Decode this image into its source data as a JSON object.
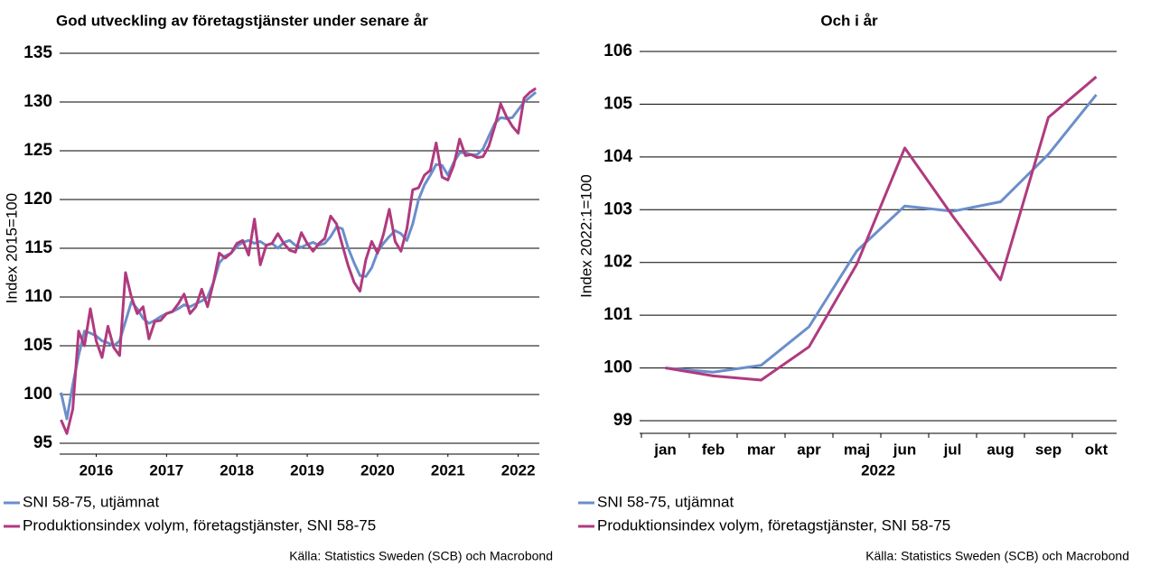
{
  "chart_data": [
    {
      "type": "line",
      "title": "God utveckling av företagstjänster under senare år",
      "ylabel": "Index 2015=100",
      "source": "Källa: Statistics Sweden (SCB) och Macrobond",
      "x": [
        2016,
        2016.083,
        2016.167,
        2016.25,
        2016.333,
        2016.417,
        2016.5,
        2016.583,
        2016.667,
        2016.75,
        2016.833,
        2016.917,
        2017,
        2017.083,
        2017.167,
        2017.25,
        2017.333,
        2017.417,
        2017.5,
        2017.583,
        2017.667,
        2017.75,
        2017.833,
        2017.917,
        2018,
        2018.083,
        2018.167,
        2018.25,
        2018.333,
        2018.417,
        2018.5,
        2018.583,
        2018.667,
        2018.75,
        2018.833,
        2018.917,
        2019,
        2019.083,
        2019.167,
        2019.25,
        2019.333,
        2019.417,
        2019.5,
        2019.583,
        2019.667,
        2019.75,
        2019.833,
        2019.917,
        2020,
        2020.083,
        2020.167,
        2020.25,
        2020.333,
        2020.417,
        2020.5,
        2020.583,
        2020.667,
        2020.75,
        2020.833,
        2020.917,
        2021,
        2021.083,
        2021.167,
        2021.25,
        2021.333,
        2021.417,
        2021.5,
        2021.583,
        2021.667,
        2021.75,
        2021.833,
        2021.917,
        2022,
        2022.083,
        2022.167,
        2022.25,
        2022.333,
        2022.417,
        2022.5,
        2022.583,
        2022.667,
        2022.75
      ],
      "xlim": [
        2015.98,
        2022.8
      ],
      "xticks": [
        {
          "value": 2016.5,
          "label": "2016"
        },
        {
          "value": 2017.5,
          "label": "2017"
        },
        {
          "value": 2018.5,
          "label": "2018"
        },
        {
          "value": 2019.5,
          "label": "2019"
        },
        {
          "value": 2020.5,
          "label": "2020"
        },
        {
          "value": 2021.5,
          "label": "2021"
        },
        {
          "value": 2022.5,
          "label": "2022"
        }
      ],
      "ylim": [
        95,
        135
      ],
      "yticks": [
        95,
        100,
        105,
        110,
        115,
        120,
        125,
        130,
        135
      ],
      "grid": true,
      "series": [
        {
          "name": "SNI 58-75, utjämnat",
          "color": "#6b8ecb",
          "values": [
            100.2,
            97.5,
            101,
            104,
            106.5,
            106.3,
            106,
            105.5,
            105.3,
            105,
            105.5,
            107.5,
            109.5,
            108.8,
            107.8,
            107.3,
            107.6,
            108,
            108.3,
            108.5,
            108.8,
            109.2,
            109,
            109.3,
            109.6,
            110,
            111.5,
            113.5,
            114.2,
            114.5,
            115.2,
            115.6,
            115.8,
            115.5,
            115.7,
            115.3,
            115.5,
            115,
            115.6,
            115.8,
            115.3,
            115.1,
            115.4,
            115.6,
            115.3,
            115.5,
            116.2,
            117.2,
            117,
            115,
            113.5,
            112.2,
            112.1,
            113,
            114.6,
            115.5,
            116.2,
            116.8,
            116.5,
            115.8,
            117.5,
            120,
            121.5,
            122.5,
            123.6,
            123.5,
            122.5,
            123.8,
            124.8,
            124.8,
            124.6,
            124.6,
            125.2,
            126.5,
            127.8,
            128.4,
            128.3,
            128.4,
            129.2,
            130,
            130.5,
            131
          ]
        },
        {
          "name": "Produktionsindex volym, företagstjänster, SNI 58-75",
          "color": "#b03a7e",
          "values": [
            97.4,
            96,
            98.5,
            106.5,
            105,
            108.8,
            105.5,
            103.8,
            107,
            104.8,
            104,
            112.5,
            110,
            108.3,
            109,
            105.7,
            107.5,
            107.6,
            108.3,
            108.5,
            109.3,
            110.3,
            108.3,
            109,
            110.8,
            109,
            111.5,
            114.5,
            114,
            114.5,
            115.5,
            115.8,
            114.3,
            118,
            113.3,
            115.3,
            115.5,
            116.5,
            115.5,
            114.8,
            114.6,
            116.6,
            115.5,
            114.7,
            115.5,
            116,
            118.3,
            117.5,
            115.3,
            113.2,
            111.5,
            110.6,
            113.8,
            115.7,
            114.5,
            116.4,
            119,
            115.7,
            114.7,
            117,
            121,
            121.2,
            122.5,
            123,
            125.8,
            122.3,
            122,
            123.5,
            126.2,
            124.5,
            124.6,
            124.3,
            124.4,
            125.5,
            127.5,
            129.8,
            128.5,
            127.5,
            126.8,
            130.4,
            131,
            131.4
          ]
        }
      ]
    },
    {
      "type": "line",
      "title": "Och i år",
      "ylabel": "Index 2022:1=100",
      "xlabel": "2022",
      "source": "Källa: Statistics Sweden (SCB) och Macrobond",
      "categories": [
        "jan",
        "feb",
        "mar",
        "apr",
        "maj",
        "jun",
        "jul",
        "aug",
        "sep",
        "okt"
      ],
      "ylim": [
        99,
        106
      ],
      "yticks": [
        99,
        100,
        101,
        102,
        103,
        104,
        105,
        106
      ],
      "grid": true,
      "series": [
        {
          "name": "SNI 58-75, utjämnat",
          "color": "#6b8ecb",
          "values": [
            100,
            99.92,
            100.05,
            100.78,
            102.22,
            103.07,
            102.97,
            103.15,
            104.05,
            105.18
          ]
        },
        {
          "name": "Produktionsindex volym, företagstjänster, SNI 58-75",
          "color": "#b03a7e",
          "values": [
            100,
            99.85,
            99.77,
            100.4,
            101.97,
            104.17,
            102.88,
            101.67,
            104.75,
            105.52
          ]
        }
      ]
    }
  ]
}
